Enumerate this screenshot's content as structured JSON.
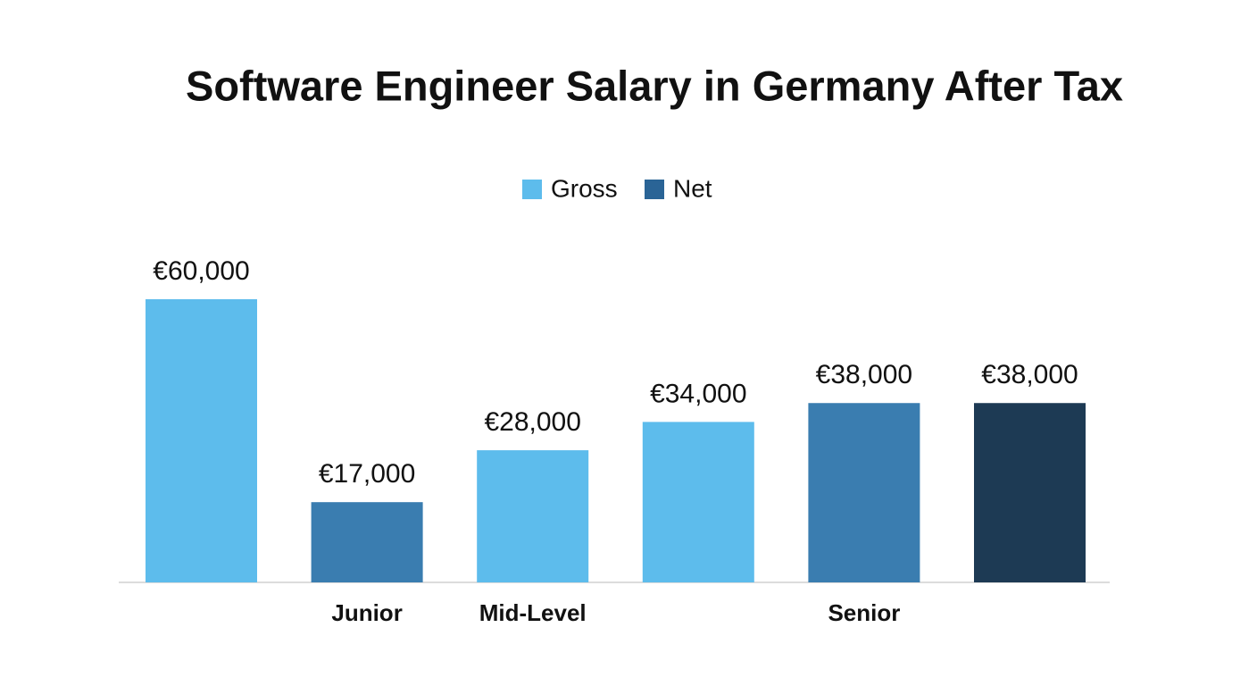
{
  "chart_data": {
    "type": "bar",
    "title": "Software Engineer Salary in Germany After Tax",
    "categories": [
      null,
      "Junior",
      "Mid-Level",
      null,
      "Senior",
      null
    ],
    "values": [
      60000,
      17000,
      28000,
      34000,
      38000,
      38000
    ],
    "value_labels": [
      "€60,000",
      "€17,000",
      "€28,000",
      "€34,000",
      "€38,000",
      "€38,000"
    ],
    "colors": [
      "#5dbcec",
      "#3a7db0",
      "#5dbcec",
      "#5dbcec",
      "#3a7db0",
      "#1d3a54"
    ],
    "legend": [
      {
        "name": "Gross",
        "color": "#5dbcec"
      },
      {
        "name": "Net",
        "color": "#2a6496"
      }
    ]
  }
}
